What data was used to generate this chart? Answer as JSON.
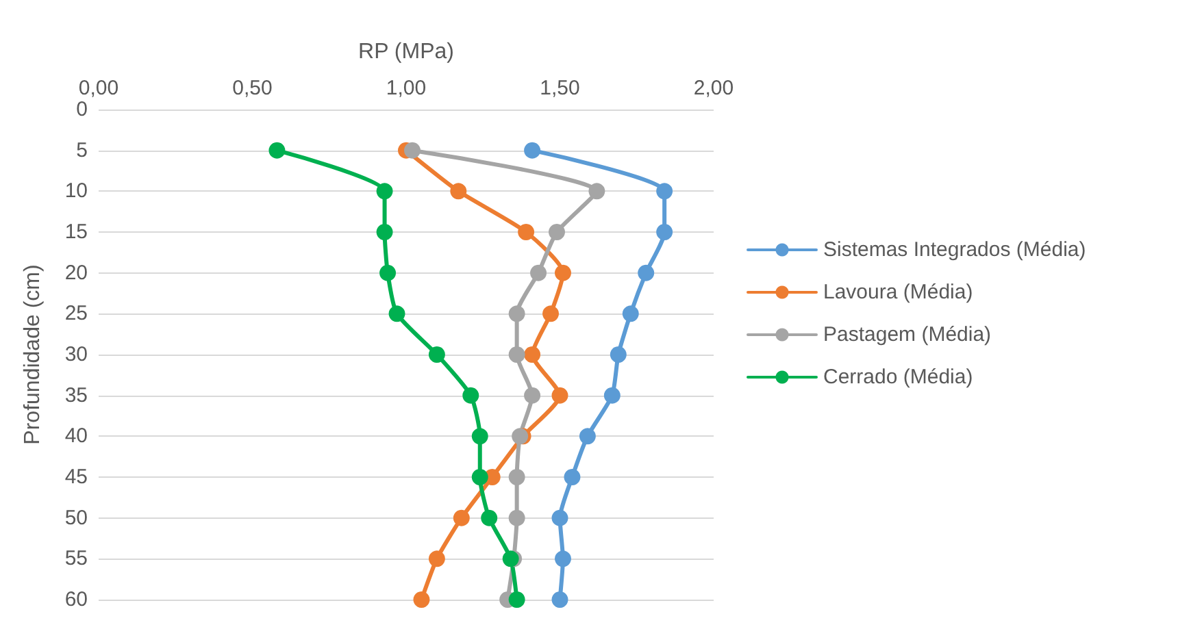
{
  "chart_data": {
    "type": "line",
    "orientation": "horizontal",
    "xlabel": "RP (MPa)",
    "ylabel": "Profundidade (cm)",
    "x": [
      5,
      10,
      15,
      20,
      25,
      30,
      35,
      40,
      45,
      50,
      55,
      60
    ],
    "series": [
      {
        "name": "Sistemas Integrados (Média)",
        "color": "#5b9bd5",
        "values": [
          1.41,
          1.84,
          1.84,
          1.78,
          1.73,
          1.69,
          1.67,
          1.59,
          1.54,
          1.5,
          1.51,
          1.5
        ]
      },
      {
        "name": "Lavoura (Média)",
        "color": "#ed7d31",
        "values": [
          1.0,
          1.17,
          1.39,
          1.51,
          1.47,
          1.41,
          1.5,
          1.38,
          1.28,
          1.18,
          1.1,
          1.05
        ]
      },
      {
        "name": "Pastagem (Média)",
        "color": "#a5a5a5",
        "values": [
          1.02,
          1.62,
          1.49,
          1.43,
          1.36,
          1.36,
          1.41,
          1.37,
          1.36,
          1.36,
          1.35,
          1.33
        ]
      },
      {
        "name": "Cerrado (Média)",
        "color": "#00b050",
        "values": [
          0.58,
          0.93,
          0.93,
          0.94,
          0.97,
          1.1,
          1.21,
          1.24,
          1.24,
          1.27,
          1.34,
          1.36
        ]
      }
    ],
    "xlim": [
      0,
      2
    ],
    "xticks": [
      {
        "value": 0,
        "label": "0,00"
      },
      {
        "value": 0.5,
        "label": "0,50"
      },
      {
        "value": 1,
        "label": "1,00"
      },
      {
        "value": 1.5,
        "label": "1,50"
      },
      {
        "value": 2,
        "label": "2,00"
      }
    ],
    "ylim": [
      60,
      0
    ],
    "yticks": [
      0,
      5,
      10,
      15,
      20,
      25,
      30,
      35,
      40,
      45,
      50,
      55,
      60
    ],
    "grid": "y",
    "legend": "right",
    "marker": "circle",
    "line_style": "solid"
  }
}
